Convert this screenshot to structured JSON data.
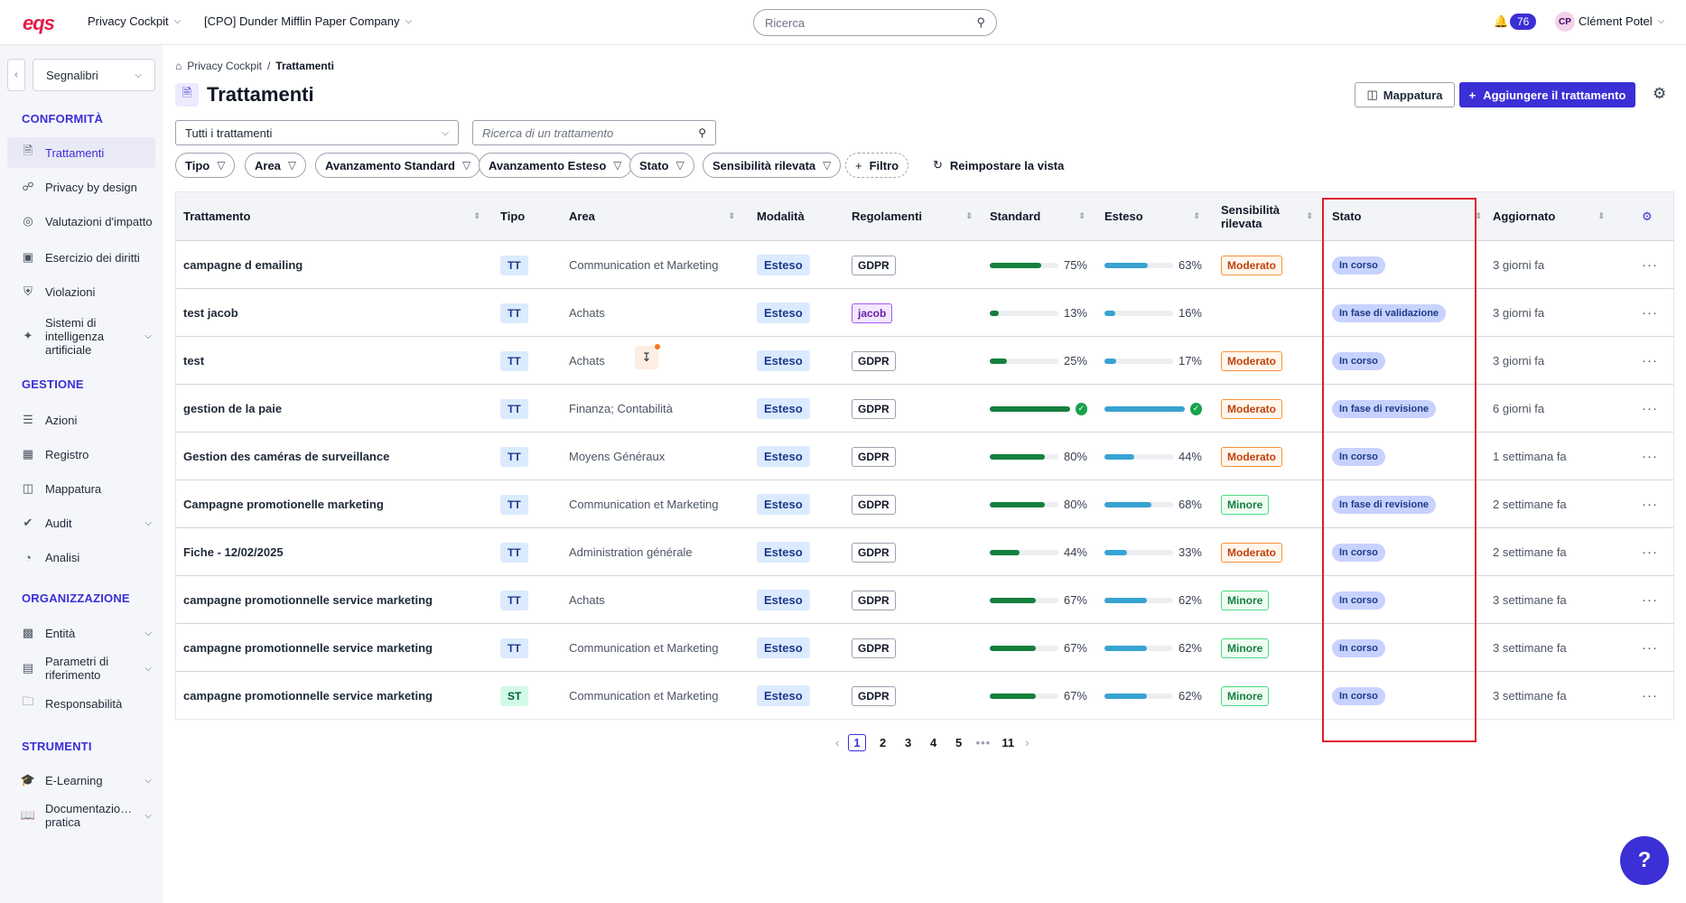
{
  "topbar": {
    "logo": "eqs",
    "app": "Privacy Cockpit",
    "company": "[CPO] Dunder Mifflin Paper Company",
    "search_placeholder": "Ricerca",
    "notification_count": "76",
    "avatar_initials": "CP",
    "user": "Clément Potel"
  },
  "sidebar": {
    "bookmarks_label": "Segnalibri",
    "sections": {
      "conformita": "CONFORMITÀ",
      "gestione": "GESTIONE",
      "organizzazione": "ORGANIZZAZIONE",
      "strumenti": "STRUMENTI"
    },
    "items": {
      "trattamenti": "Trattamenti",
      "privacy_by_design": "Privacy by design",
      "valutazioni": "Valutazioni d'impatto",
      "esercizio": "Esercizio dei diritti",
      "violazioni": "Violazioni",
      "sistemi_ia": "Sistemi di intelligenza artificiale",
      "azioni": "Azioni",
      "registro": "Registro",
      "mappatura": "Mappatura",
      "audit": "Audit",
      "analisi": "Analisi",
      "entita": "Entità",
      "parametri": "Parametri di riferimento",
      "responsabilita": "Responsabilità",
      "elearning": "E-Learning",
      "documentazione": "Documentazio… pratica"
    }
  },
  "breadcrumb": {
    "root": "Privacy Cockpit",
    "current": "Trattamenti"
  },
  "page_title": "Trattamenti",
  "buttons": {
    "map": "Mappatura",
    "add": "Aggiungere il trattamento",
    "reset": "Reimpostare la vista"
  },
  "filters": {
    "select_all": "Tutti i trattamenti",
    "search_placeholder": "Ricerca di un trattamento",
    "chips": [
      "Tipo",
      "Area",
      "Avanzamento Standard",
      "Avanzamento Esteso",
      "Stato",
      "Sensibilità rilevata"
    ],
    "add_filter": "Filtro"
  },
  "table": {
    "headers": {
      "trattamento": "Trattamento",
      "tipo": "Tipo",
      "area": "Area",
      "modalita": "Modalità",
      "regolamenti": "Regolamenti",
      "standard": "Standard",
      "esteso": "Esteso",
      "sensibilita": "Sensibilità rilevata",
      "stato": "Stato",
      "aggiornato": "Aggiornato"
    },
    "rows": [
      {
        "name": "campagne d emailing",
        "tipo": "TT",
        "area": "Communication et Marketing",
        "mod": "Esteso",
        "reg": "GDPR",
        "std": 75,
        "std_t": "75%",
        "est": 63,
        "est_t": "63%",
        "sens": "Moderato",
        "stato": "In corso",
        "upd": "3 giorni fa"
      },
      {
        "name": "test jacob",
        "tipo": "TT",
        "area": "Achats",
        "mod": "Esteso",
        "reg": "jacob",
        "std": 13,
        "std_t": "13%",
        "est": 16,
        "est_t": "16%",
        "sens": "",
        "stato": "In fase di validazione",
        "upd": "3 giorni fa"
      },
      {
        "name": "test",
        "tipo": "TT",
        "area": "Achats",
        "mod": "Esteso",
        "reg": "GDPR",
        "std": 25,
        "std_t": "25%",
        "est": 17,
        "est_t": "17%",
        "sens": "Moderato",
        "stato": "In corso",
        "upd": "3 giorni fa"
      },
      {
        "name": "gestion de la paie",
        "tipo": "TT",
        "area": "Finanza; Contabilità",
        "mod": "Esteso",
        "reg": "GDPR",
        "std": 100,
        "std_t": "",
        "est": 100,
        "est_t": "",
        "sens": "Moderato",
        "stato": "In fase di revisione",
        "upd": "6 giorni fa"
      },
      {
        "name": "Gestion des caméras de surveillance",
        "tipo": "TT",
        "area": "Moyens Généraux",
        "mod": "Esteso",
        "reg": "GDPR",
        "std": 80,
        "std_t": "80%",
        "est": 44,
        "est_t": "44%",
        "sens": "Moderato",
        "stato": "In corso",
        "upd": "1 settimana fa"
      },
      {
        "name": "Campagne promotionelle marketing",
        "tipo": "TT",
        "area": "Communication et Marketing",
        "mod": "Esteso",
        "reg": "GDPR",
        "std": 80,
        "std_t": "80%",
        "est": 68,
        "est_t": "68%",
        "sens": "Minore",
        "stato": "In fase di revisione",
        "upd": "2 settimane fa"
      },
      {
        "name": "Fiche - 12/02/2025",
        "tipo": "TT",
        "area": "Administration générale",
        "mod": "Esteso",
        "reg": "GDPR",
        "std": 44,
        "std_t": "44%",
        "est": 33,
        "est_t": "33%",
        "sens": "Moderato",
        "stato": "In corso",
        "upd": "2 settimane fa"
      },
      {
        "name": "campagne promotionnelle service marketing",
        "tipo": "TT",
        "area": "Achats",
        "mod": "Esteso",
        "reg": "GDPR",
        "std": 67,
        "std_t": "67%",
        "est": 62,
        "est_t": "62%",
        "sens": "Minore",
        "stato": "In corso",
        "upd": "3 settimane fa"
      },
      {
        "name": "campagne promotionnelle service marketing",
        "tipo": "TT",
        "area": "Communication et Marketing",
        "mod": "Esteso",
        "reg": "GDPR",
        "std": 67,
        "std_t": "67%",
        "est": 62,
        "est_t": "62%",
        "sens": "Minore",
        "stato": "In corso",
        "upd": "3 settimane fa"
      },
      {
        "name": "campagne promotionnelle service marketing",
        "tipo": "ST",
        "area": "Communication et Marketing",
        "mod": "Esteso",
        "reg": "GDPR",
        "std": 67,
        "std_t": "67%",
        "est": 62,
        "est_t": "62%",
        "sens": "Minore",
        "stato": "In corso",
        "upd": "3 settimane fa"
      }
    ]
  },
  "pagination": {
    "pages": [
      "1",
      "2",
      "3",
      "4",
      "5"
    ],
    "ellipsis": "•••",
    "last": "11"
  },
  "colors": {
    "accent": "#3b2fd6",
    "standard_bar": "#15803d",
    "esteso_bar": "#38a3d1",
    "highlight": "#e11d2e"
  }
}
